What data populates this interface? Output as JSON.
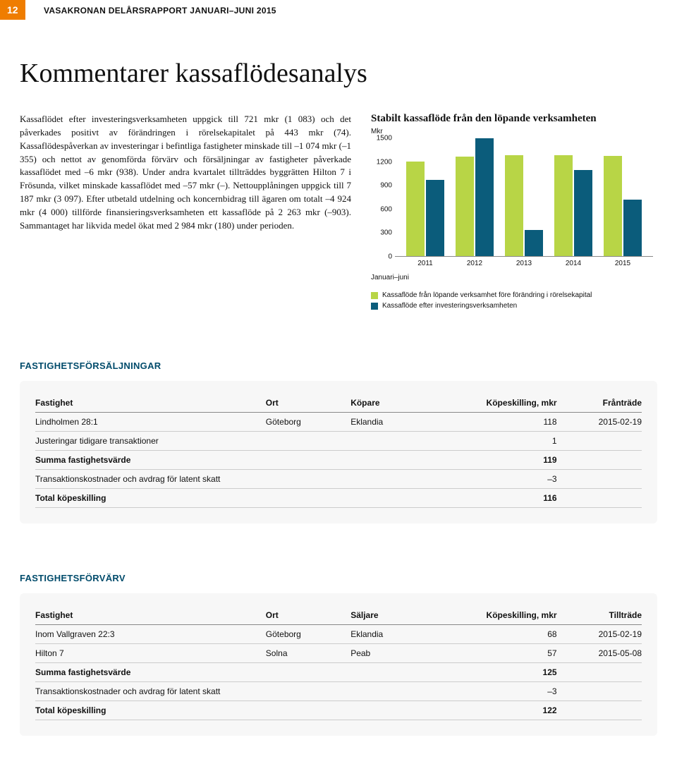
{
  "header": {
    "page_number": "12",
    "runhead": "VASAKRONAN DELÅRSRAPPORT JANUARI–JUNI 2015"
  },
  "title": "Kommentarer kassaflödesanalys",
  "body_text": "Kassaflödet efter investeringsverksamheten uppgick till 721 mkr (1 083) och det påverkades positivt av förändringen i rörelsekapitalet på 443 mkr (74). Kassaflödespåverkan av investeringar i befintliga fastigheter minskade till –1 074 mkr (–1 355) och nettot av genomförda förvärv och försäljningar av fastigheter påverkade kassaflödet med –6 mkr (938). Under andra kvartalet tillträddes byggrätten Hilton 7 i Frösunda, vilket minskade kassaflödet med –57 mkr (–). Nettoupplåningen uppgick till 7 187 mkr (3 097). Efter utbetald utdelning och koncernbidrag till ägaren om totalt –4 924 mkr (4 000) tillförde finansieringsverksamheten ett kassaflöde på 2 263 mkr (–903). Sammantaget har likvida medel ökat med 2 984 mkr (180) under perioden.",
  "chart": {
    "title": "Stabilt kassaflöde från den löpande verksamheten",
    "unit": "Mkr",
    "sub": "Januari–juni",
    "y_max": 1500,
    "y_ticks": [
      "1500",
      "1200",
      "900",
      "600",
      "300",
      "0"
    ],
    "colors": {
      "series1": "#b8d546",
      "series2": "#0b5c7b"
    },
    "years": [
      "2011",
      "2012",
      "2013",
      "2014",
      "2015"
    ],
    "series1": [
      1200,
      1260,
      1280,
      1280,
      1270
    ],
    "series2": [
      960,
      1490,
      330,
      1090,
      710
    ],
    "legend": [
      "Kassaflöde från löpande verksamhet före förändring i rörelsekapital",
      "Kassaflöde efter investeringsverksamheten"
    ]
  },
  "tables": {
    "sales": {
      "heading": "FASTIGHETSFÖRSÄLJNINGAR",
      "cols": [
        "Fastighet",
        "Ort",
        "Köpare",
        "Köpeskilling, mkr",
        "Frånträde"
      ],
      "rows": [
        {
          "c": [
            "Lindholmen 28:1",
            "Göteborg",
            "Eklandia",
            "118",
            "2015-02-19"
          ],
          "bold": false
        },
        {
          "c": [
            "Justeringar tidigare transaktioner",
            "",
            "",
            "1",
            ""
          ],
          "bold": false
        },
        {
          "c": [
            "Summa fastighetsvärde",
            "",
            "",
            "119",
            ""
          ],
          "bold": true
        },
        {
          "c": [
            "Transaktionskostnader och avdrag för latent skatt",
            "",
            "",
            "–3",
            ""
          ],
          "bold": false
        },
        {
          "c": [
            "Total köpeskilling",
            "",
            "",
            "116",
            ""
          ],
          "bold": true
        }
      ]
    },
    "acq": {
      "heading": "FASTIGHETSFÖRVÄRV",
      "cols": [
        "Fastighet",
        "Ort",
        "Säljare",
        "Köpeskilling, mkr",
        "Tillträde"
      ],
      "rows": [
        {
          "c": [
            "Inom Vallgraven 22:3",
            "Göteborg",
            "Eklandia",
            "68",
            "2015-02-19"
          ],
          "bold": false
        },
        {
          "c": [
            "Hilton 7",
            "Solna",
            "Peab",
            "57",
            "2015-05-08"
          ],
          "bold": false
        },
        {
          "c": [
            "Summa fastighetsvärde",
            "",
            "",
            "125",
            ""
          ],
          "bold": true
        },
        {
          "c": [
            "Transaktionskostnader och avdrag för latent skatt",
            "",
            "",
            "–3",
            ""
          ],
          "bold": false
        },
        {
          "c": [
            "Total köpeskilling",
            "",
            "",
            "122",
            ""
          ],
          "bold": true
        }
      ]
    }
  }
}
